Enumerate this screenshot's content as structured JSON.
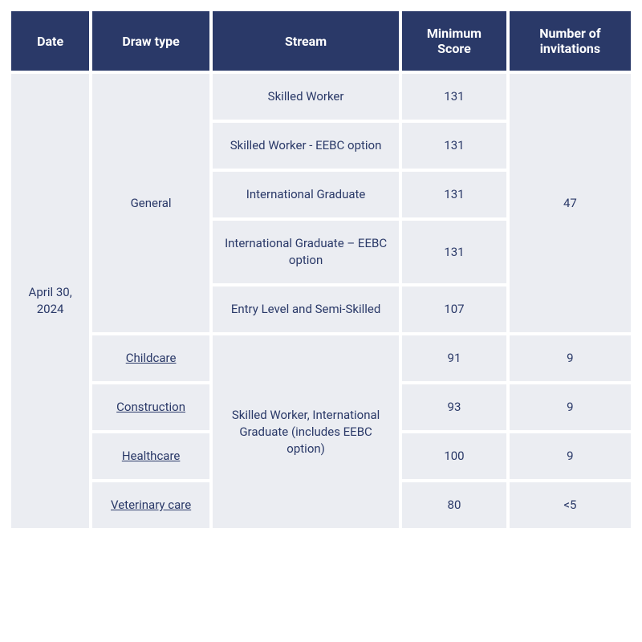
{
  "headers": {
    "date": "Date",
    "draw_type": "Draw type",
    "stream": "Stream",
    "min_score": "Minimum Score",
    "invitations": "Number of invitations"
  },
  "date": "April 30, 2024",
  "draw_general": "General",
  "streams_general": {
    "s1": "Skilled Worker",
    "s2": "Skilled Worker - EEBC option",
    "s3": "International Graduate",
    "s4": "International Graduate – EEBC option",
    "s5": "Entry Level and Semi-Skilled"
  },
  "scores_general": {
    "s1": "131",
    "s2": "131",
    "s3": "131",
    "s4": "131",
    "s5": "107"
  },
  "inv_general": "47",
  "targeted_stream_shared": "Skilled Worker, International Graduate (includes EEBC option)",
  "targeted": {
    "r1": {
      "draw": "Childcare",
      "score": "91",
      "inv": "9"
    },
    "r2": {
      "draw": "Construction",
      "score": "93",
      "inv": "9"
    },
    "r3": {
      "draw": "Healthcare",
      "score": "100",
      "inv": "9"
    },
    "r4": {
      "draw": "Veterinary care",
      "score": "80",
      "inv": "<5"
    }
  },
  "colors": {
    "header_bg": "#2a3968",
    "header_text": "#ffffff",
    "cell_bg": "#ebedf2",
    "cell_text": "#2a3968",
    "link_color": "#2a3968"
  }
}
